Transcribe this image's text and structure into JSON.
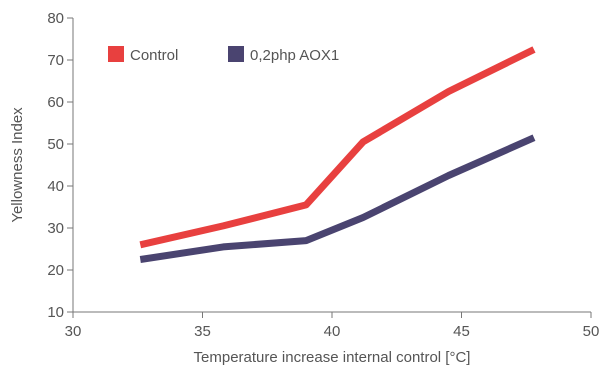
{
  "chart_data": {
    "type": "line",
    "title": "",
    "xlabel": "Temperature increase internal control [°C]",
    "ylabel": "Yellowness Index",
    "xlim": [
      30,
      50
    ],
    "ylim": [
      10,
      80
    ],
    "xticks": [
      30,
      35,
      40,
      45,
      50
    ],
    "yticks": [
      10,
      20,
      30,
      40,
      50,
      60,
      70,
      80
    ],
    "grid": false,
    "legend_position": "top-left",
    "series": [
      {
        "name": "Control",
        "color": "#e8403f",
        "x": [
          32.6,
          35.8,
          39.0,
          41.2,
          44.5,
          47.8
        ],
        "y": [
          26.0,
          30.5,
          35.5,
          50.5,
          62.5,
          72.5
        ]
      },
      {
        "name": "0,2php AOX1",
        "color": "#4a4470",
        "x": [
          32.6,
          35.8,
          39.0,
          41.2,
          44.5,
          47.8
        ],
        "y": [
          22.5,
          25.5,
          27.0,
          32.5,
          42.5,
          51.5
        ]
      }
    ]
  }
}
